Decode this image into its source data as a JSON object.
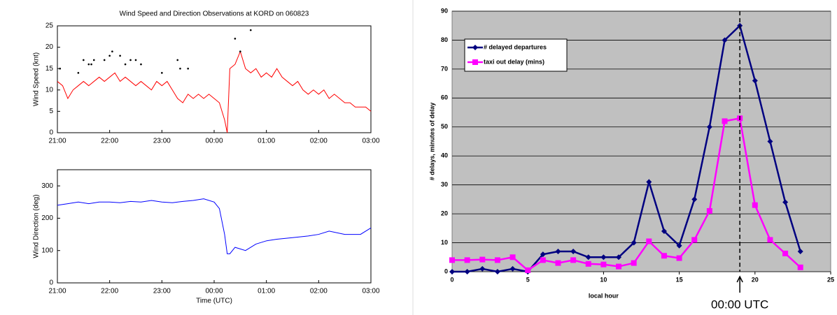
{
  "chart_data": [
    {
      "type": "line",
      "title": "Wind Speed and Direction Observations at KORD on 060823",
      "ylabel": "Wind Speed (knt)",
      "xlim": [
        0,
        6
      ],
      "ylim": [
        0,
        25
      ],
      "xticks": [
        {
          "value": 0,
          "label": "21:00"
        },
        {
          "value": 1,
          "label": "22:00"
        },
        {
          "value": 2,
          "label": "23:00"
        },
        {
          "value": 3,
          "label": "00:00"
        },
        {
          "value": 4,
          "label": "01:00"
        },
        {
          "value": 5,
          "label": "02:00"
        },
        {
          "value": 6,
          "label": "03:00"
        }
      ],
      "yticks": [
        0,
        5,
        10,
        15,
        20,
        25
      ],
      "series": [
        {
          "type": "line",
          "color": "#ff0000",
          "x": [
            0,
            0.1,
            0.2,
            0.3,
            0.4,
            0.5,
            0.6,
            0.7,
            0.8,
            0.9,
            1.0,
            1.1,
            1.2,
            1.3,
            1.4,
            1.5,
            1.6,
            1.7,
            1.8,
            1.9,
            2.0,
            2.1,
            2.2,
            2.3,
            2.4,
            2.5,
            2.6,
            2.7,
            2.8,
            2.9,
            3.0,
            3.1,
            3.2,
            3.25,
            3.3,
            3.4,
            3.5,
            3.6,
            3.7,
            3.8,
            3.9,
            4.0,
            4.1,
            4.2,
            4.3,
            4.4,
            4.5,
            4.6,
            4.7,
            4.8,
            4.9,
            5.0,
            5.1,
            5.2,
            5.3,
            5.4,
            5.5,
            5.6,
            5.7,
            5.8,
            5.9,
            6.0
          ],
          "values": [
            12,
            11,
            8,
            10,
            11,
            12,
            11,
            12,
            13,
            12,
            13,
            14,
            12,
            13,
            12,
            11,
            12,
            11,
            10,
            12,
            11,
            12,
            10,
            8,
            7,
            9,
            8,
            9,
            8,
            9,
            8,
            7,
            3,
            0,
            15,
            16,
            19,
            15,
            14,
            15,
            13,
            14,
            13,
            15,
            13,
            12,
            11,
            12,
            10,
            9,
            10,
            9,
            10,
            8,
            9,
            8,
            7,
            7,
            6,
            6,
            6,
            5
          ]
        },
        {
          "type": "scatter",
          "color": "#000000",
          "x": [
            0.05,
            0.4,
            0.5,
            0.6,
            0.65,
            0.7,
            0.9,
            1.0,
            1.05,
            1.2,
            1.3,
            1.4,
            1.5,
            1.6,
            2.0,
            2.3,
            2.35,
            2.5,
            3.4,
            3.5,
            3.7
          ],
          "values": [
            15,
            14,
            17,
            16,
            16,
            17,
            17,
            18,
            19,
            18,
            16,
            17,
            17,
            16,
            14,
            17,
            15,
            15,
            22,
            19,
            24
          ]
        }
      ]
    },
    {
      "type": "line",
      "ylabel": "Wind Direction (deg)",
      "xlabel": "Time (UTC)",
      "xlim": [
        0,
        6
      ],
      "ylim": [
        0,
        350
      ],
      "xticks": [
        {
          "value": 0,
          "label": "21:00"
        },
        {
          "value": 1,
          "label": "22:00"
        },
        {
          "value": 2,
          "label": "23:00"
        },
        {
          "value": 3,
          "label": "00:00"
        },
        {
          "value": 4,
          "label": "01:00"
        },
        {
          "value": 5,
          "label": "02:00"
        },
        {
          "value": 6,
          "label": "03:00"
        }
      ],
      "yticks": [
        0,
        100,
        200,
        300
      ],
      "series": [
        {
          "type": "line",
          "color": "#0000ff",
          "x": [
            0,
            0.2,
            0.4,
            0.6,
            0.8,
            1.0,
            1.2,
            1.4,
            1.6,
            1.8,
            2.0,
            2.2,
            2.4,
            2.6,
            2.8,
            3.0,
            3.1,
            3.2,
            3.25,
            3.3,
            3.4,
            3.6,
            3.8,
            4.0,
            4.2,
            4.5,
            4.8,
            5.0,
            5.2,
            5.5,
            5.8,
            6.0
          ],
          "values": [
            240,
            245,
            250,
            245,
            250,
            250,
            248,
            252,
            250,
            255,
            250,
            248,
            252,
            255,
            260,
            250,
            230,
            150,
            90,
            90,
            110,
            100,
            120,
            130,
            135,
            140,
            145,
            150,
            160,
            150,
            150,
            170
          ]
        }
      ]
    },
    {
      "type": "line",
      "ylabel": "# delays, minutes of delay",
      "xlabel": "local hour",
      "xlim": [
        0,
        25
      ],
      "ylim": [
        0,
        90
      ],
      "xticks": [
        0,
        5,
        10,
        15,
        20,
        25
      ],
      "yticks": [
        0,
        10,
        20,
        30,
        40,
        50,
        60,
        70,
        80,
        90
      ],
      "grid": true,
      "legend": "upper left",
      "x": [
        0,
        1,
        2,
        3,
        4,
        5,
        6,
        7,
        8,
        9,
        10,
        11,
        12,
        13,
        14,
        15,
        16,
        17,
        18,
        19,
        20,
        21,
        22,
        23
      ],
      "series": [
        {
          "type": "line",
          "name": "# delayed departures",
          "color": "#000080",
          "marker": "diamond",
          "values": [
            0,
            0,
            1,
            0,
            1,
            0,
            6,
            7,
            7,
            5,
            5,
            5,
            10,
            31,
            14,
            9,
            25,
            50,
            80,
            85,
            66,
            45,
            24,
            7
          ]
        },
        {
          "type": "line",
          "name": "taxi out delay (mins)",
          "color": "#ff00ff",
          "marker": "square",
          "values": [
            4,
            4,
            4.2,
            4,
            5,
            0.5,
            4,
            3,
            4,
            2.7,
            2.5,
            1.8,
            3,
            10.5,
            5.5,
            4.7,
            11,
            21,
            52,
            53,
            23,
            11,
            6.3,
            1.5
          ]
        }
      ],
      "annotation": {
        "text": "00:00 UTC",
        "x": 19
      }
    }
  ]
}
